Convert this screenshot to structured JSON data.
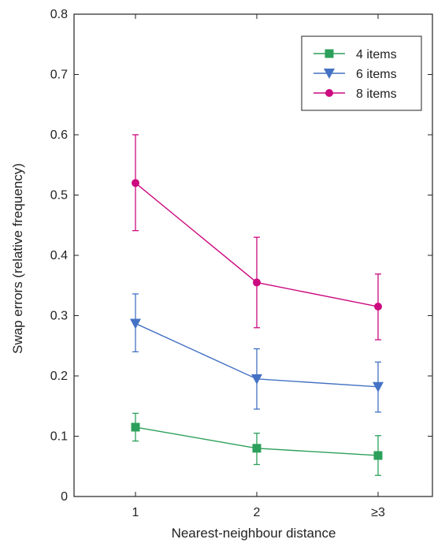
{
  "chart_data": {
    "type": "line",
    "title": "",
    "xlabel": "Nearest-neighbour distance",
    "ylabel": "Swap errors (relative frequency)",
    "categories": [
      "1",
      "2",
      "≥3"
    ],
    "ylim": [
      0,
      0.8
    ],
    "yticks": [
      0,
      0.1,
      0.2,
      0.3,
      0.4,
      0.5,
      0.6,
      0.7,
      0.8
    ],
    "ytick_labels": [
      "0",
      "0.1",
      "0.2",
      "0.3",
      "0.4",
      "0.5",
      "0.6",
      "0.7",
      "0.8"
    ],
    "grid": false,
    "legend_position": "top-right",
    "series": [
      {
        "name": "4 items",
        "color": "#2ca05a",
        "marker": "square",
        "values": [
          0.115,
          0.08,
          0.068
        ],
        "err_low": [
          0.092,
          0.053,
          0.035
        ],
        "err_high": [
          0.138,
          0.105,
          0.101
        ]
      },
      {
        "name": "6 items",
        "color": "#4472c4",
        "marker": "triangle-down",
        "values": [
          0.287,
          0.195,
          0.182
        ],
        "err_low": [
          0.24,
          0.145,
          0.14
        ],
        "err_high": [
          0.336,
          0.245,
          0.223
        ]
      },
      {
        "name": "8 items",
        "color": "#cc0a7f",
        "marker": "circle",
        "values": [
          0.52,
          0.355,
          0.315
        ],
        "err_low": [
          0.441,
          0.28,
          0.26
        ],
        "err_high": [
          0.6,
          0.43,
          0.369
        ]
      }
    ]
  }
}
